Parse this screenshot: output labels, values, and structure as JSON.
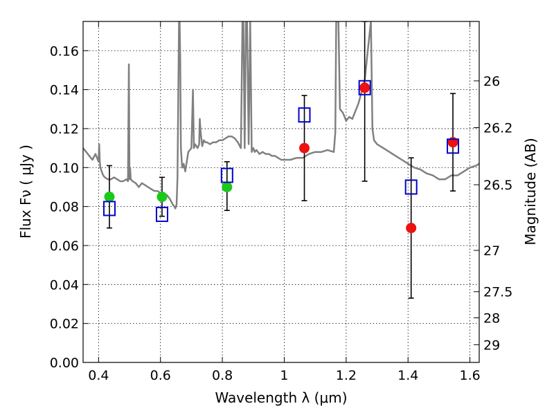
{
  "chart_data": {
    "type": "scatter",
    "xlabel": "Wavelength  λ (μm)",
    "ylabel": "Flux  Fν  ( μJy )",
    "ylabel_right": "Magnitude (AB)",
    "xlim": [
      0.35,
      1.63
    ],
    "ylim": [
      0.0,
      0.175
    ],
    "grid": true,
    "x_ticks": [
      {
        "v": 0.4,
        "label": "0.4"
      },
      {
        "v": 0.6,
        "label": "0.6"
      },
      {
        "v": 0.8,
        "label": "0.8"
      },
      {
        "v": 1.0,
        "label": "1"
      },
      {
        "v": 1.2,
        "label": "1.2"
      },
      {
        "v": 1.4,
        "label": "1.4"
      },
      {
        "v": 1.6,
        "label": "1.6"
      }
    ],
    "y_ticks": [
      {
        "v": 0.0,
        "label": "0.00"
      },
      {
        "v": 0.02,
        "label": "0.02"
      },
      {
        "v": 0.04,
        "label": "0.04"
      },
      {
        "v": 0.06,
        "label": "0.06"
      },
      {
        "v": 0.08,
        "label": "0.08"
      },
      {
        "v": 0.1,
        "label": "0.10"
      },
      {
        "v": 0.12,
        "label": "0.12"
      },
      {
        "v": 0.14,
        "label": "0.14"
      },
      {
        "v": 0.16,
        "label": "0.16"
      }
    ],
    "right_ticks": [
      {
        "flux": 0.1445,
        "label": "26"
      },
      {
        "flux": 0.1205,
        "label": "26.2"
      },
      {
        "flux": 0.0912,
        "label": "26.5"
      },
      {
        "flux": 0.0575,
        "label": "27"
      },
      {
        "flux": 0.0363,
        "label": "27.5"
      },
      {
        "flux": 0.0229,
        "label": "28"
      },
      {
        "flux": 0.0091,
        "label": "29"
      }
    ],
    "colors": {
      "spectrum": "#808080",
      "green_points": "#1bc91b",
      "red_points": "#ee1111",
      "model_boxes": "#0000cc",
      "error_bars": "#000000"
    },
    "spectrum_series": {
      "name": "",
      "x": [
        0.35,
        0.36,
        0.37,
        0.38,
        0.39,
        0.4,
        0.402,
        0.404,
        0.406,
        0.41,
        0.415,
        0.42,
        0.43,
        0.44,
        0.45,
        0.46,
        0.47,
        0.48,
        0.49,
        0.495,
        0.498,
        0.5,
        0.502,
        0.504,
        0.51,
        0.52,
        0.53,
        0.54,
        0.55,
        0.56,
        0.57,
        0.58,
        0.59,
        0.6,
        0.61,
        0.62,
        0.63,
        0.64,
        0.645,
        0.648,
        0.652,
        0.655,
        0.66,
        0.662,
        0.664,
        0.666,
        0.668,
        0.67,
        0.675,
        0.68,
        0.69,
        0.7,
        0.705,
        0.708,
        0.712,
        0.72,
        0.725,
        0.727,
        0.73,
        0.735,
        0.74,
        0.745,
        0.75,
        0.76,
        0.77,
        0.78,
        0.79,
        0.8,
        0.81,
        0.82,
        0.83,
        0.84,
        0.85,
        0.86,
        0.865,
        0.868,
        0.872,
        0.876,
        0.88,
        0.885,
        0.89,
        0.895,
        0.9,
        0.905,
        0.91,
        0.92,
        0.93,
        0.94,
        0.95,
        0.96,
        0.97,
        0.98,
        0.99,
        1.0,
        1.02,
        1.04,
        1.06,
        1.08,
        1.1,
        1.12,
        1.14,
        1.16,
        1.165,
        1.168,
        1.175,
        1.18,
        1.19,
        1.2,
        1.21,
        1.22,
        1.24,
        1.26,
        1.27,
        1.28,
        1.285,
        1.29,
        1.3,
        1.32,
        1.34,
        1.36,
        1.38,
        1.4,
        1.42,
        1.44,
        1.46,
        1.48,
        1.5,
        1.52,
        1.54,
        1.56,
        1.58,
        1.6,
        1.62,
        1.63
      ],
      "y": [
        0.11,
        0.108,
        0.106,
        0.104,
        0.107,
        0.103,
        0.112,
        0.103,
        0.1,
        0.098,
        0.096,
        0.095,
        0.094,
        0.094,
        0.095,
        0.094,
        0.093,
        0.093,
        0.094,
        0.093,
        0.153,
        0.094,
        0.1,
        0.094,
        0.093,
        0.092,
        0.09,
        0.092,
        0.091,
        0.09,
        0.089,
        0.088,
        0.088,
        0.087,
        0.086,
        0.086,
        0.084,
        0.081,
        0.08,
        0.079,
        0.081,
        0.095,
        0.175,
        0.175,
        0.155,
        0.11,
        0.105,
        0.1,
        0.102,
        0.098,
        0.108,
        0.11,
        0.14,
        0.11,
        0.112,
        0.11,
        0.112,
        0.125,
        0.118,
        0.111,
        0.114,
        0.113,
        0.113,
        0.112,
        0.113,
        0.113,
        0.114,
        0.114,
        0.115,
        0.116,
        0.116,
        0.115,
        0.113,
        0.11,
        0.175,
        0.175,
        0.11,
        0.175,
        0.175,
        0.112,
        0.175,
        0.108,
        0.11,
        0.108,
        0.109,
        0.107,
        0.108,
        0.107,
        0.107,
        0.106,
        0.106,
        0.105,
        0.104,
        0.104,
        0.104,
        0.105,
        0.105,
        0.107,
        0.108,
        0.108,
        0.109,
        0.108,
        0.118,
        0.175,
        0.175,
        0.13,
        0.128,
        0.124,
        0.126,
        0.125,
        0.133,
        0.145,
        0.16,
        0.175,
        0.12,
        0.114,
        0.112,
        0.11,
        0.108,
        0.106,
        0.104,
        0.102,
        0.1,
        0.099,
        0.097,
        0.096,
        0.094,
        0.094,
        0.096,
        0.096,
        0.098,
        0.1,
        0.101,
        0.102
      ]
    },
    "green_points": [
      {
        "x": 0.435,
        "y": 0.085
      },
      {
        "x": 0.605,
        "y": 0.085
      },
      {
        "x": 0.815,
        "y": 0.09
      }
    ],
    "red_points": [
      {
        "x": 1.065,
        "y": 0.11
      },
      {
        "x": 1.26,
        "y": 0.141
      },
      {
        "x": 1.41,
        "y": 0.069
      },
      {
        "x": 1.545,
        "y": 0.113
      }
    ],
    "model_boxes": [
      {
        "x": 0.435,
        "y": 0.079
      },
      {
        "x": 0.605,
        "y": 0.076
      },
      {
        "x": 0.815,
        "y": 0.096
      },
      {
        "x": 1.065,
        "y": 0.127
      },
      {
        "x": 1.26,
        "y": 0.141
      },
      {
        "x": 1.41,
        "y": 0.09
      },
      {
        "x": 1.545,
        "y": 0.111
      }
    ],
    "error_bars": [
      {
        "x": 0.435,
        "low": 0.069,
        "high": 0.101
      },
      {
        "x": 0.605,
        "low": 0.075,
        "high": 0.095
      },
      {
        "x": 0.815,
        "low": 0.078,
        "high": 0.103
      },
      {
        "x": 1.065,
        "low": 0.083,
        "high": 0.137
      },
      {
        "x": 1.26,
        "low": 0.093,
        "high": 0.175
      },
      {
        "x": 1.41,
        "low": 0.033,
        "high": 0.105
      },
      {
        "x": 1.545,
        "low": 0.088,
        "high": 0.138
      }
    ]
  }
}
